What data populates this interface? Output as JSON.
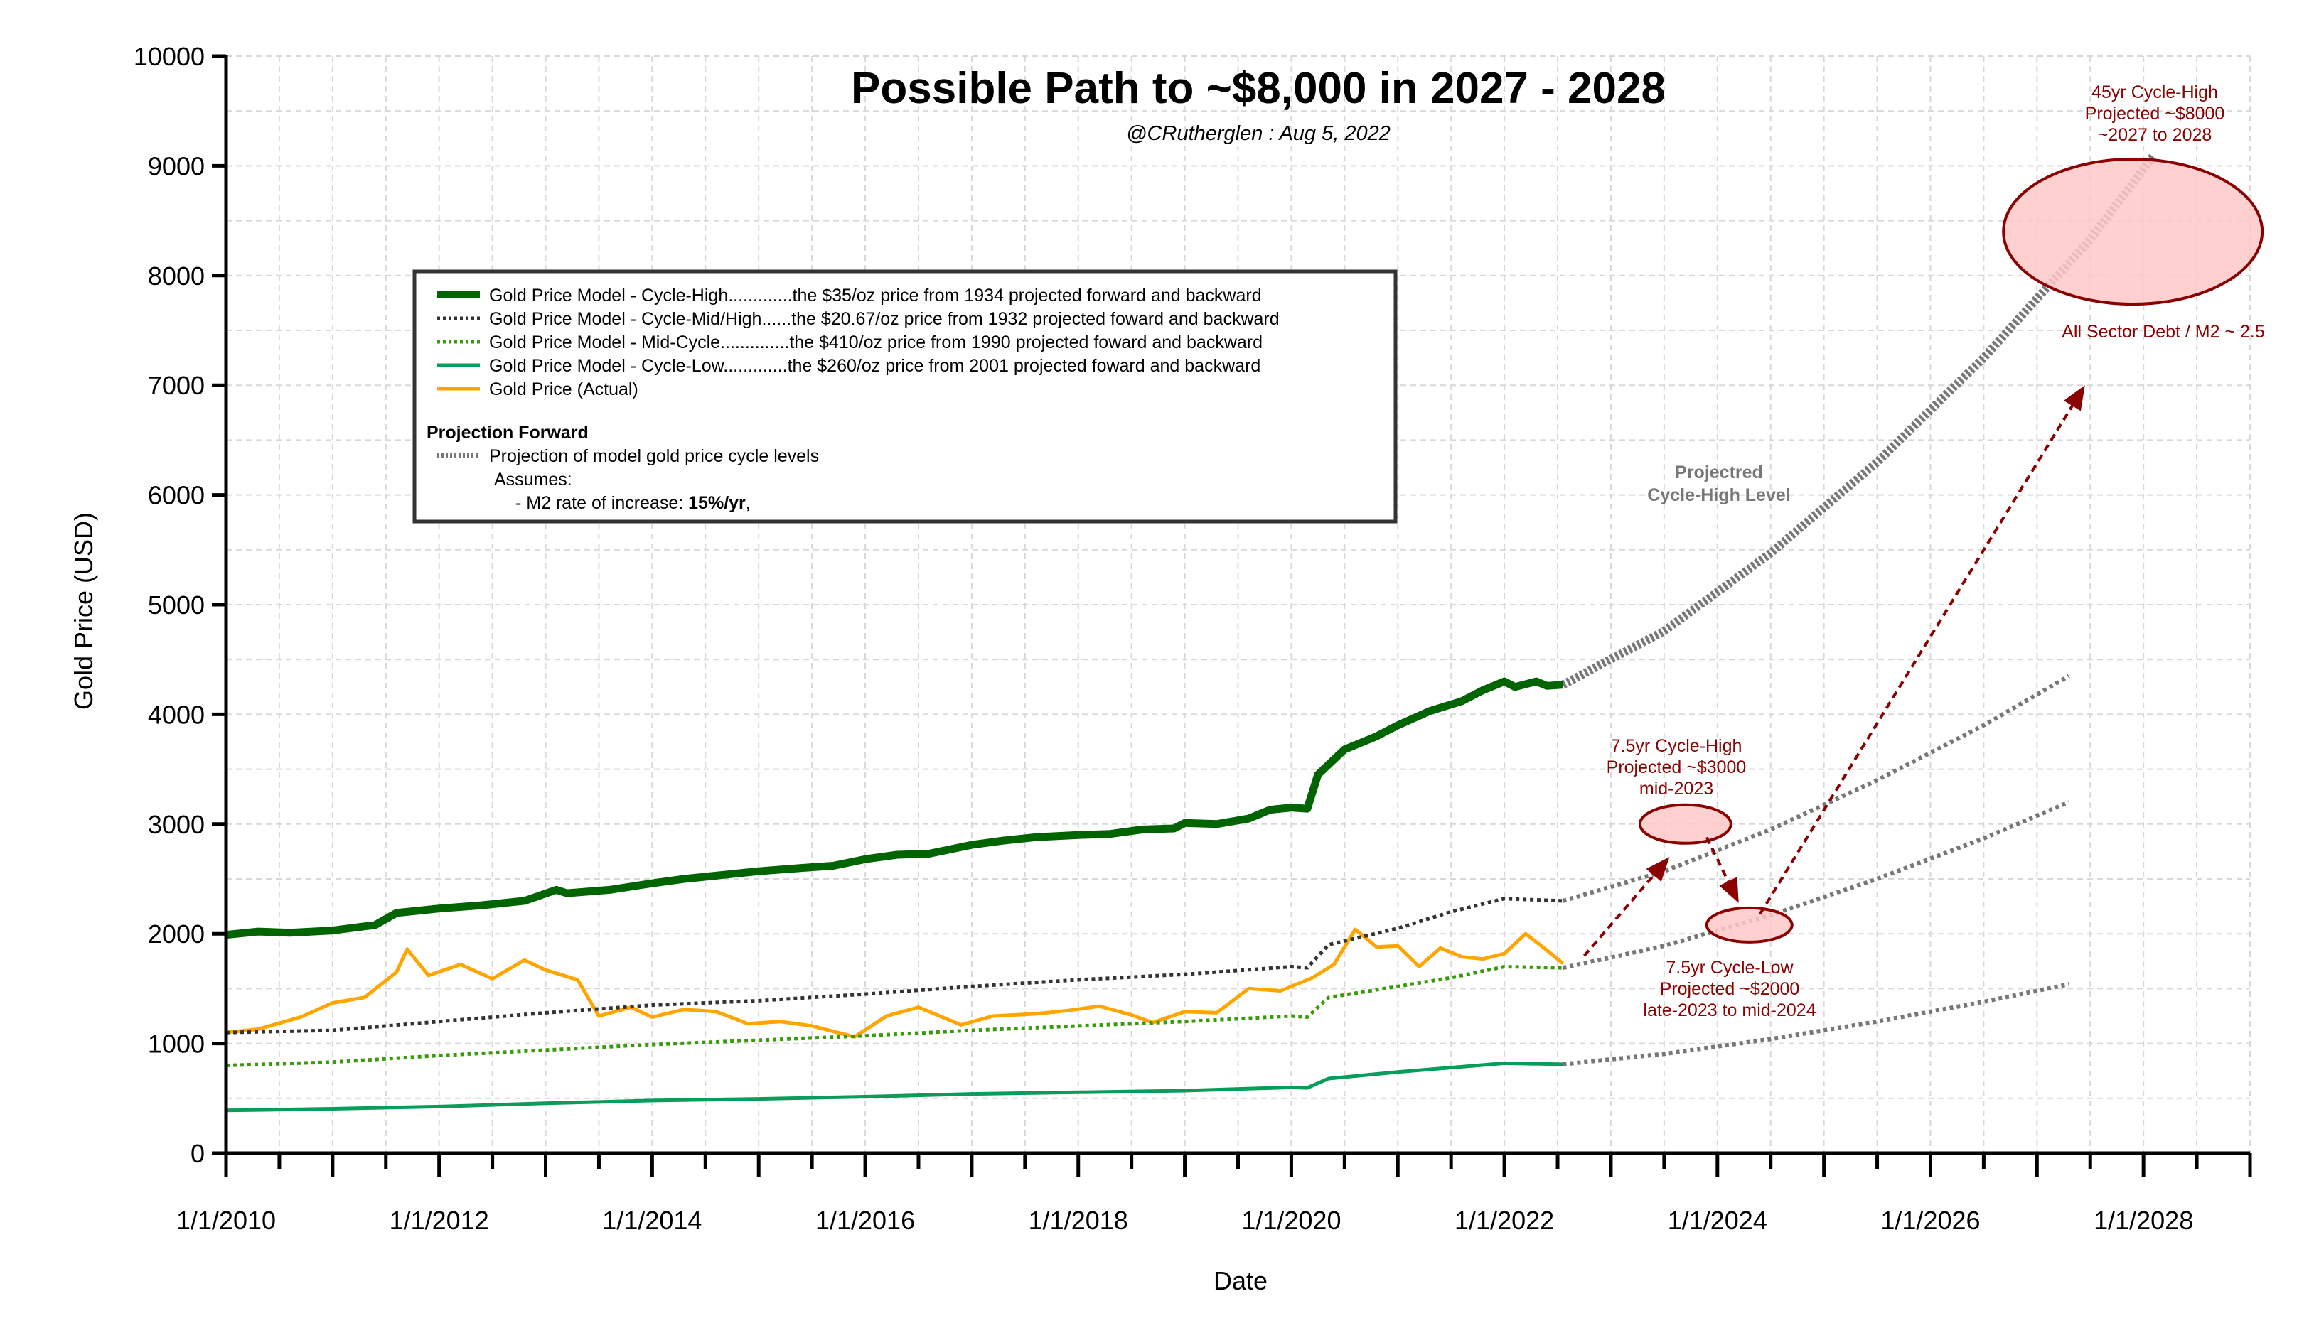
{
  "chart_data": {
    "type": "line",
    "title": "Possible Path to ~$8,000 in 2027 - 2028",
    "subtitle": "@CRutherglen : Aug 5, 2022",
    "xlabel": "Date",
    "ylabel": "Gold Price (USD)",
    "xlim": [
      2010.0,
      2029.0
    ],
    "ylim": [
      0,
      10000
    ],
    "grid": true,
    "y_ticks": [
      0,
      1000,
      2000,
      3000,
      4000,
      5000,
      6000,
      7000,
      8000,
      9000,
      10000
    ],
    "y_tick_labels": [
      "0",
      "1000",
      "2000",
      "3000",
      "4000",
      "5000",
      "6000",
      "7000",
      "8000",
      "9000",
      "10000"
    ],
    "x_ticks": [
      2010,
      2012,
      2014,
      2016,
      2018,
      2020,
      2022,
      2024,
      2026,
      2028
    ],
    "x_tick_labels": [
      "1/1/2010",
      "1/1/2012",
      "1/1/2014",
      "1/1/2016",
      "1/1/2018",
      "1/1/2020",
      "1/1/2022",
      "1/1/2024",
      "1/1/2026",
      "1/1/2028"
    ],
    "series": [
      {
        "name": "Gold Price Model - Cycle-High",
        "color": "#006400",
        "style": "solid-thick",
        "points": [
          [
            2010.0,
            1990
          ],
          [
            2010.3,
            2020
          ],
          [
            2010.6,
            2010
          ],
          [
            2011.0,
            2030
          ],
          [
            2011.4,
            2080
          ],
          [
            2011.6,
            2190
          ],
          [
            2012.0,
            2230
          ],
          [
            2012.4,
            2260
          ],
          [
            2012.8,
            2300
          ],
          [
            2013.1,
            2400
          ],
          [
            2013.2,
            2370
          ],
          [
            2013.6,
            2400
          ],
          [
            2014.0,
            2460
          ],
          [
            2014.3,
            2500
          ],
          [
            2014.6,
            2530
          ],
          [
            2015.0,
            2570
          ],
          [
            2015.4,
            2600
          ],
          [
            2015.7,
            2620
          ],
          [
            2016.0,
            2680
          ],
          [
            2016.3,
            2720
          ],
          [
            2016.6,
            2730
          ],
          [
            2017.0,
            2810
          ],
          [
            2017.3,
            2850
          ],
          [
            2017.6,
            2880
          ],
          [
            2018.0,
            2900
          ],
          [
            2018.3,
            2910
          ],
          [
            2018.6,
            2950
          ],
          [
            2018.9,
            2960
          ],
          [
            2019.0,
            3010
          ],
          [
            2019.3,
            3000
          ],
          [
            2019.6,
            3050
          ],
          [
            2019.8,
            3130
          ],
          [
            2020.0,
            3150
          ],
          [
            2020.15,
            3140
          ],
          [
            2020.25,
            3450
          ],
          [
            2020.5,
            3680
          ],
          [
            2020.8,
            3800
          ],
          [
            2021.0,
            3900
          ],
          [
            2021.3,
            4030
          ],
          [
            2021.6,
            4120
          ],
          [
            2021.8,
            4220
          ],
          [
            2022.0,
            4300
          ],
          [
            2022.1,
            4250
          ],
          [
            2022.3,
            4300
          ],
          [
            2022.4,
            4260
          ],
          [
            2022.55,
            4270
          ]
        ]
      },
      {
        "name": "Gold Price Model - Cycle-Mid/High",
        "color": "#333333",
        "style": "dotted",
        "points": [
          [
            2010.0,
            1100
          ],
          [
            2011.0,
            1120
          ],
          [
            2012.0,
            1200
          ],
          [
            2013.0,
            1280
          ],
          [
            2014.0,
            1350
          ],
          [
            2015.0,
            1390
          ],
          [
            2016.0,
            1450
          ],
          [
            2017.0,
            1520
          ],
          [
            2018.0,
            1580
          ],
          [
            2019.0,
            1630
          ],
          [
            2020.0,
            1700
          ],
          [
            2020.15,
            1690
          ],
          [
            2020.35,
            1900
          ],
          [
            2021.0,
            2050
          ],
          [
            2021.5,
            2200
          ],
          [
            2022.0,
            2320
          ],
          [
            2022.55,
            2300
          ]
        ]
      },
      {
        "name": "Gold Price Model - Mid-Cycle",
        "color": "#3a9b0a",
        "style": "dotted",
        "points": [
          [
            2010.0,
            800
          ],
          [
            2011.0,
            830
          ],
          [
            2012.0,
            890
          ],
          [
            2013.0,
            940
          ],
          [
            2014.0,
            990
          ],
          [
            2015.0,
            1030
          ],
          [
            2016.0,
            1070
          ],
          [
            2017.0,
            1120
          ],
          [
            2018.0,
            1160
          ],
          [
            2019.0,
            1200
          ],
          [
            2020.0,
            1250
          ],
          [
            2020.15,
            1240
          ],
          [
            2020.35,
            1420
          ],
          [
            2021.0,
            1520
          ],
          [
            2021.5,
            1600
          ],
          [
            2022.0,
            1700
          ],
          [
            2022.55,
            1690
          ]
        ]
      },
      {
        "name": "Gold Price Model - Cycle-Low",
        "color": "#0a9c5a",
        "style": "solid",
        "points": [
          [
            2010.0,
            390
          ],
          [
            2011.0,
            405
          ],
          [
            2012.0,
            425
          ],
          [
            2013.0,
            455
          ],
          [
            2014.0,
            480
          ],
          [
            2015.0,
            495
          ],
          [
            2016.0,
            515
          ],
          [
            2017.0,
            540
          ],
          [
            2018.0,
            555
          ],
          [
            2019.0,
            570
          ],
          [
            2020.0,
            600
          ],
          [
            2020.15,
            595
          ],
          [
            2020.35,
            680
          ],
          [
            2021.0,
            740
          ],
          [
            2021.5,
            780
          ],
          [
            2022.0,
            820
          ],
          [
            2022.55,
            810
          ]
        ]
      },
      {
        "name": "Gold Price (Actual)",
        "color": "#ffa500",
        "style": "solid",
        "points": [
          [
            2010.0,
            1100
          ],
          [
            2010.3,
            1130
          ],
          [
            2010.7,
            1240
          ],
          [
            2011.0,
            1370
          ],
          [
            2011.3,
            1420
          ],
          [
            2011.6,
            1650
          ],
          [
            2011.7,
            1860
          ],
          [
            2011.9,
            1620
          ],
          [
            2012.2,
            1720
          ],
          [
            2012.5,
            1590
          ],
          [
            2012.8,
            1760
          ],
          [
            2013.0,
            1670
          ],
          [
            2013.3,
            1580
          ],
          [
            2013.5,
            1250
          ],
          [
            2013.8,
            1330
          ],
          [
            2014.0,
            1240
          ],
          [
            2014.3,
            1310
          ],
          [
            2014.6,
            1290
          ],
          [
            2014.9,
            1180
          ],
          [
            2015.2,
            1200
          ],
          [
            2015.5,
            1160
          ],
          [
            2015.9,
            1060
          ],
          [
            2016.2,
            1250
          ],
          [
            2016.5,
            1330
          ],
          [
            2016.9,
            1170
          ],
          [
            2017.2,
            1250
          ],
          [
            2017.6,
            1270
          ],
          [
            2017.9,
            1300
          ],
          [
            2018.2,
            1340
          ],
          [
            2018.5,
            1260
          ],
          [
            2018.7,
            1190
          ],
          [
            2019.0,
            1290
          ],
          [
            2019.3,
            1280
          ],
          [
            2019.6,
            1500
          ],
          [
            2019.9,
            1480
          ],
          [
            2020.2,
            1600
          ],
          [
            2020.4,
            1720
          ],
          [
            2020.6,
            2040
          ],
          [
            2020.8,
            1880
          ],
          [
            2021.0,
            1890
          ],
          [
            2021.2,
            1700
          ],
          [
            2021.4,
            1870
          ],
          [
            2021.6,
            1790
          ],
          [
            2021.8,
            1770
          ],
          [
            2022.0,
            1820
          ],
          [
            2022.2,
            2000
          ],
          [
            2022.4,
            1850
          ],
          [
            2022.55,
            1730
          ]
        ]
      }
    ],
    "projections": [
      {
        "name": "Projection of model gold price cycle levels",
        "level": "Cycle-High",
        "points": [
          [
            2022.55,
            4270
          ],
          [
            2023.5,
            4760
          ],
          [
            2024.5,
            5470
          ],
          [
            2025.5,
            6300
          ],
          [
            2026.5,
            7250
          ],
          [
            2027.5,
            8330
          ],
          [
            2028.1,
            9100
          ]
        ]
      },
      {
        "level": "Cycle-Mid/High",
        "points": [
          [
            2022.55,
            2300
          ],
          [
            2023.5,
            2570
          ],
          [
            2024.5,
            2950
          ],
          [
            2025.5,
            3400
          ],
          [
            2026.5,
            3900
          ],
          [
            2027.3,
            4350
          ]
        ]
      },
      {
        "level": "Mid-Cycle",
        "points": [
          [
            2022.55,
            1690
          ],
          [
            2023.5,
            1890
          ],
          [
            2024.5,
            2170
          ],
          [
            2025.5,
            2500
          ],
          [
            2026.5,
            2870
          ],
          [
            2027.3,
            3200
          ]
        ]
      },
      {
        "level": "Cycle-Low",
        "points": [
          [
            2022.55,
            810
          ],
          [
            2023.5,
            905
          ],
          [
            2024.5,
            1040
          ],
          [
            2025.5,
            1200
          ],
          [
            2026.5,
            1380
          ],
          [
            2027.3,
            1540
          ]
        ]
      }
    ],
    "legend": {
      "placement": "upper-left",
      "entries": [
        {
          "color": "#006400",
          "style": "solid-thick",
          "label": "Gold Price Model - Cycle-High.............the $35/oz price from 1934 projected forward and backward"
        },
        {
          "color": "#333333",
          "style": "dotted",
          "label": "Gold Price Model - Cycle-Mid/High......the $20.67/oz price from 1932 projected foward and backward"
        },
        {
          "color": "#3a9b0a",
          "style": "dotted",
          "label": "Gold Price Model - Mid-Cycle..............the $410/oz price from 1990 projected foward and backward"
        },
        {
          "color": "#0a9c5a",
          "style": "solid",
          "label": "Gold Price Model - Cycle-Low.............the $260/oz price from 2001 projected foward and backward"
        },
        {
          "color": "#ffa500",
          "style": "solid",
          "label": "Gold Price (Actual)"
        }
      ],
      "section_title": "Projection Forward",
      "projection_entry": {
        "color": "#777777",
        "style": "dotted",
        "label": "Projection of model gold price cycle levels"
      },
      "assumes_label": "Assumes:",
      "m2_prefix": "- M2 rate of increase: ",
      "m2_value": "15%/yr",
      "m2_suffix": ","
    },
    "annotations": {
      "projected_level_line1": "Projectred",
      "projected_level_line2": "Cycle-High Level",
      "big_high": {
        "line1": "45yr Cycle-High",
        "line2": "Projected ~$8000",
        "line3": "~2027 to 2028",
        "center": [
          2027.9,
          8400
        ]
      },
      "big_high_note": "All Sector Debt / M2 ~ 2.5",
      "mid_high": {
        "line1": "7.5yr Cycle-High",
        "line2": "Projected ~$3000",
        "line3": "mid-2023",
        "center": [
          2023.7,
          3000
        ]
      },
      "low": {
        "line1": "7.5yr Cycle-Low",
        "line2": "Projected ~$2000",
        "line3": "late-2023 to mid-2024",
        "center": [
          2024.3,
          2080
        ]
      },
      "arrows": [
        {
          "from": [
            2022.75,
            1800
          ],
          "to": [
            2023.55,
            2700
          ]
        },
        {
          "from": [
            2023.9,
            2880
          ],
          "to": [
            2024.2,
            2280
          ]
        },
        {
          "from": [
            2024.4,
            2180
          ],
          "to": [
            2027.45,
            7000
          ]
        }
      ],
      "colors": {
        "accent": "#8b0000",
        "fill": "#ffc8c8",
        "projection": "#777777",
        "grid": "#d8d8d8"
      }
    }
  }
}
